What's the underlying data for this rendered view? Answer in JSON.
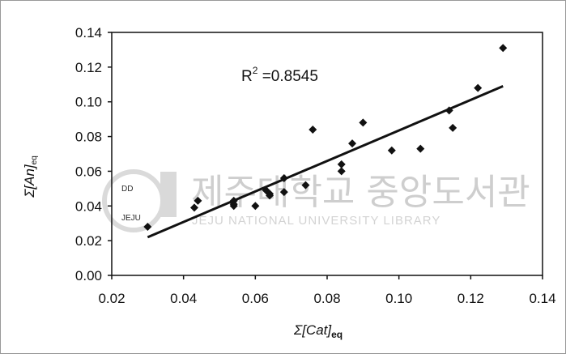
{
  "chart_data": {
    "type": "scatter",
    "title": "",
    "xlabel_main": "Σ[Cat]",
    "xlabel_sub": "eq",
    "ylabel_main": "Σ[An]",
    "ylabel_sub": "eq",
    "xlim": [
      0.02,
      0.14
    ],
    "ylim": [
      0.0,
      0.14
    ],
    "x_ticks": [
      "0.02",
      "0.04",
      "0.06",
      "0.08",
      "0.10",
      "0.12",
      "0.14"
    ],
    "y_ticks": [
      "0.00",
      "0.02",
      "0.04",
      "0.06",
      "0.08",
      "0.10",
      "0.12",
      "0.14"
    ],
    "grid": false,
    "legend": "none",
    "marker_color": "#111111",
    "points": [
      {
        "x": 0.03,
        "y": 0.028
      },
      {
        "x": 0.043,
        "y": 0.039
      },
      {
        "x": 0.044,
        "y": 0.043
      },
      {
        "x": 0.054,
        "y": 0.041
      },
      {
        "x": 0.054,
        "y": 0.043
      },
      {
        "x": 0.054,
        "y": 0.04
      },
      {
        "x": 0.06,
        "y": 0.04
      },
      {
        "x": 0.063,
        "y": 0.049
      },
      {
        "x": 0.064,
        "y": 0.047
      },
      {
        "x": 0.064,
        "y": 0.046
      },
      {
        "x": 0.068,
        "y": 0.048
      },
      {
        "x": 0.068,
        "y": 0.056
      },
      {
        "x": 0.074,
        "y": 0.052
      },
      {
        "x": 0.076,
        "y": 0.084
      },
      {
        "x": 0.084,
        "y": 0.064
      },
      {
        "x": 0.084,
        "y": 0.06
      },
      {
        "x": 0.087,
        "y": 0.076
      },
      {
        "x": 0.09,
        "y": 0.088
      },
      {
        "x": 0.098,
        "y": 0.072
      },
      {
        "x": 0.106,
        "y": 0.073
      },
      {
        "x": 0.114,
        "y": 0.095
      },
      {
        "x": 0.115,
        "y": 0.085
      },
      {
        "x": 0.122,
        "y": 0.108
      },
      {
        "x": 0.129,
        "y": 0.131
      }
    ],
    "trendline": {
      "x1": 0.03,
      "y1": 0.022,
      "x2": 0.129,
      "y2": 0.109
    },
    "annotation": {
      "base": "R",
      "sup": "2",
      "text": " =0.8545"
    }
  },
  "watermark": {
    "korean": "제주대학교 중앙도서관",
    "english": "JEJU NATIONAL UNIVERSITY  LIBRARY",
    "logo_text_top": "DD",
    "logo_text_bottom": "JEJU"
  }
}
